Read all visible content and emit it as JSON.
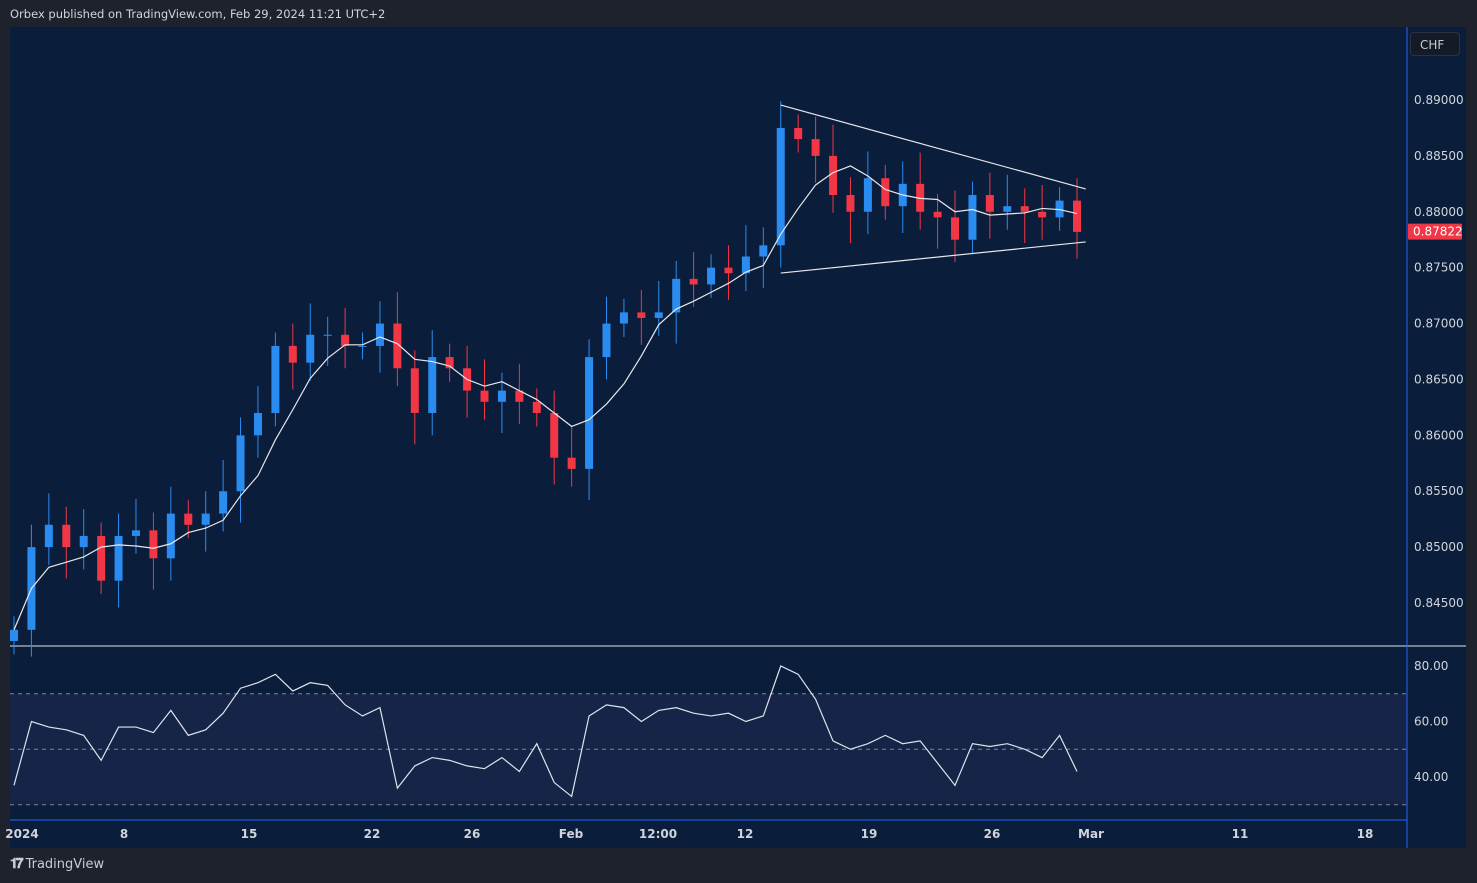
{
  "header": {
    "published": "Orbex published on TradingView.com, Feb 29, 2024 11:21 UTC+2"
  },
  "currency_button": "CHF",
  "logo_text": "TradingView",
  "colors": {
    "up": "#2a8cf0",
    "down": "#f23645",
    "bg": "#0a1d3b",
    "rsi_band": "#162448",
    "last_price": "#f23645"
  },
  "chart_data": {
    "type": "candlestick",
    "symbol_currency": "CHF",
    "price_axis": {
      "labels": [
        "0.89000",
        "0.88500",
        "0.88000",
        "0.87500",
        "0.87000",
        "0.86500",
        "0.86000",
        "0.85500",
        "0.85000",
        "0.84500"
      ],
      "ylim": [
        0.8415,
        0.8925
      ]
    },
    "last_price": "0.87822",
    "time_axis": {
      "labels": [
        "2024",
        "8",
        "15",
        "22",
        "26",
        "Feb",
        "12:00",
        "12",
        "19",
        "26",
        "Mar",
        "11",
        "18"
      ]
    },
    "closes": [
      0.8426,
      0.85,
      0.852,
      0.85,
      0.851,
      0.847,
      0.851,
      0.8515,
      0.849,
      0.853,
      0.852,
      0.853,
      0.855,
      0.86,
      0.862,
      0.868,
      0.8665,
      0.869,
      0.869,
      0.868,
      0.868,
      0.87,
      0.866,
      0.862,
      0.867,
      0.866,
      0.864,
      0.863,
      0.864,
      0.863,
      0.862,
      0.858,
      0.857,
      0.867,
      0.87,
      0.871,
      0.8705,
      0.871,
      0.874,
      0.8735,
      0.875,
      0.8745,
      0.876,
      0.877,
      0.8875,
      0.8865,
      0.885,
      0.8815,
      0.88,
      0.883,
      0.8805,
      0.8825,
      0.88,
      0.8795,
      0.8775,
      0.8815,
      0.88,
      0.8805,
      0.88,
      0.8795,
      0.881,
      0.8782
    ],
    "moving_average_period": 5,
    "trendlines": [
      {
        "name": "upper",
        "from": [
          44,
          0.88955
        ],
        "to": [
          61.5,
          0.88204
        ]
      },
      {
        "name": "lower",
        "from": [
          44,
          0.87452
        ],
        "to": [
          61.5,
          0.8773
        ]
      }
    ],
    "rsi": {
      "labels": [
        "80.00",
        "60.00",
        "40.00"
      ],
      "levels": [
        70,
        50,
        30
      ],
      "ylim": [
        25,
        85
      ],
      "values": [
        37,
        60,
        58,
        57,
        55,
        46,
        58,
        58,
        56,
        64,
        55,
        57,
        63,
        72,
        74,
        77,
        71,
        74,
        73,
        66,
        62,
        65,
        36,
        44,
        47,
        46,
        44,
        43,
        47,
        42,
        52,
        38,
        33,
        62,
        66,
        65,
        60,
        64,
        65,
        63,
        62,
        63,
        60,
        62,
        80,
        77,
        68,
        53,
        50,
        52,
        55,
        52,
        53,
        45,
        37,
        52,
        51,
        52,
        50,
        47,
        55,
        42
      ]
    }
  }
}
